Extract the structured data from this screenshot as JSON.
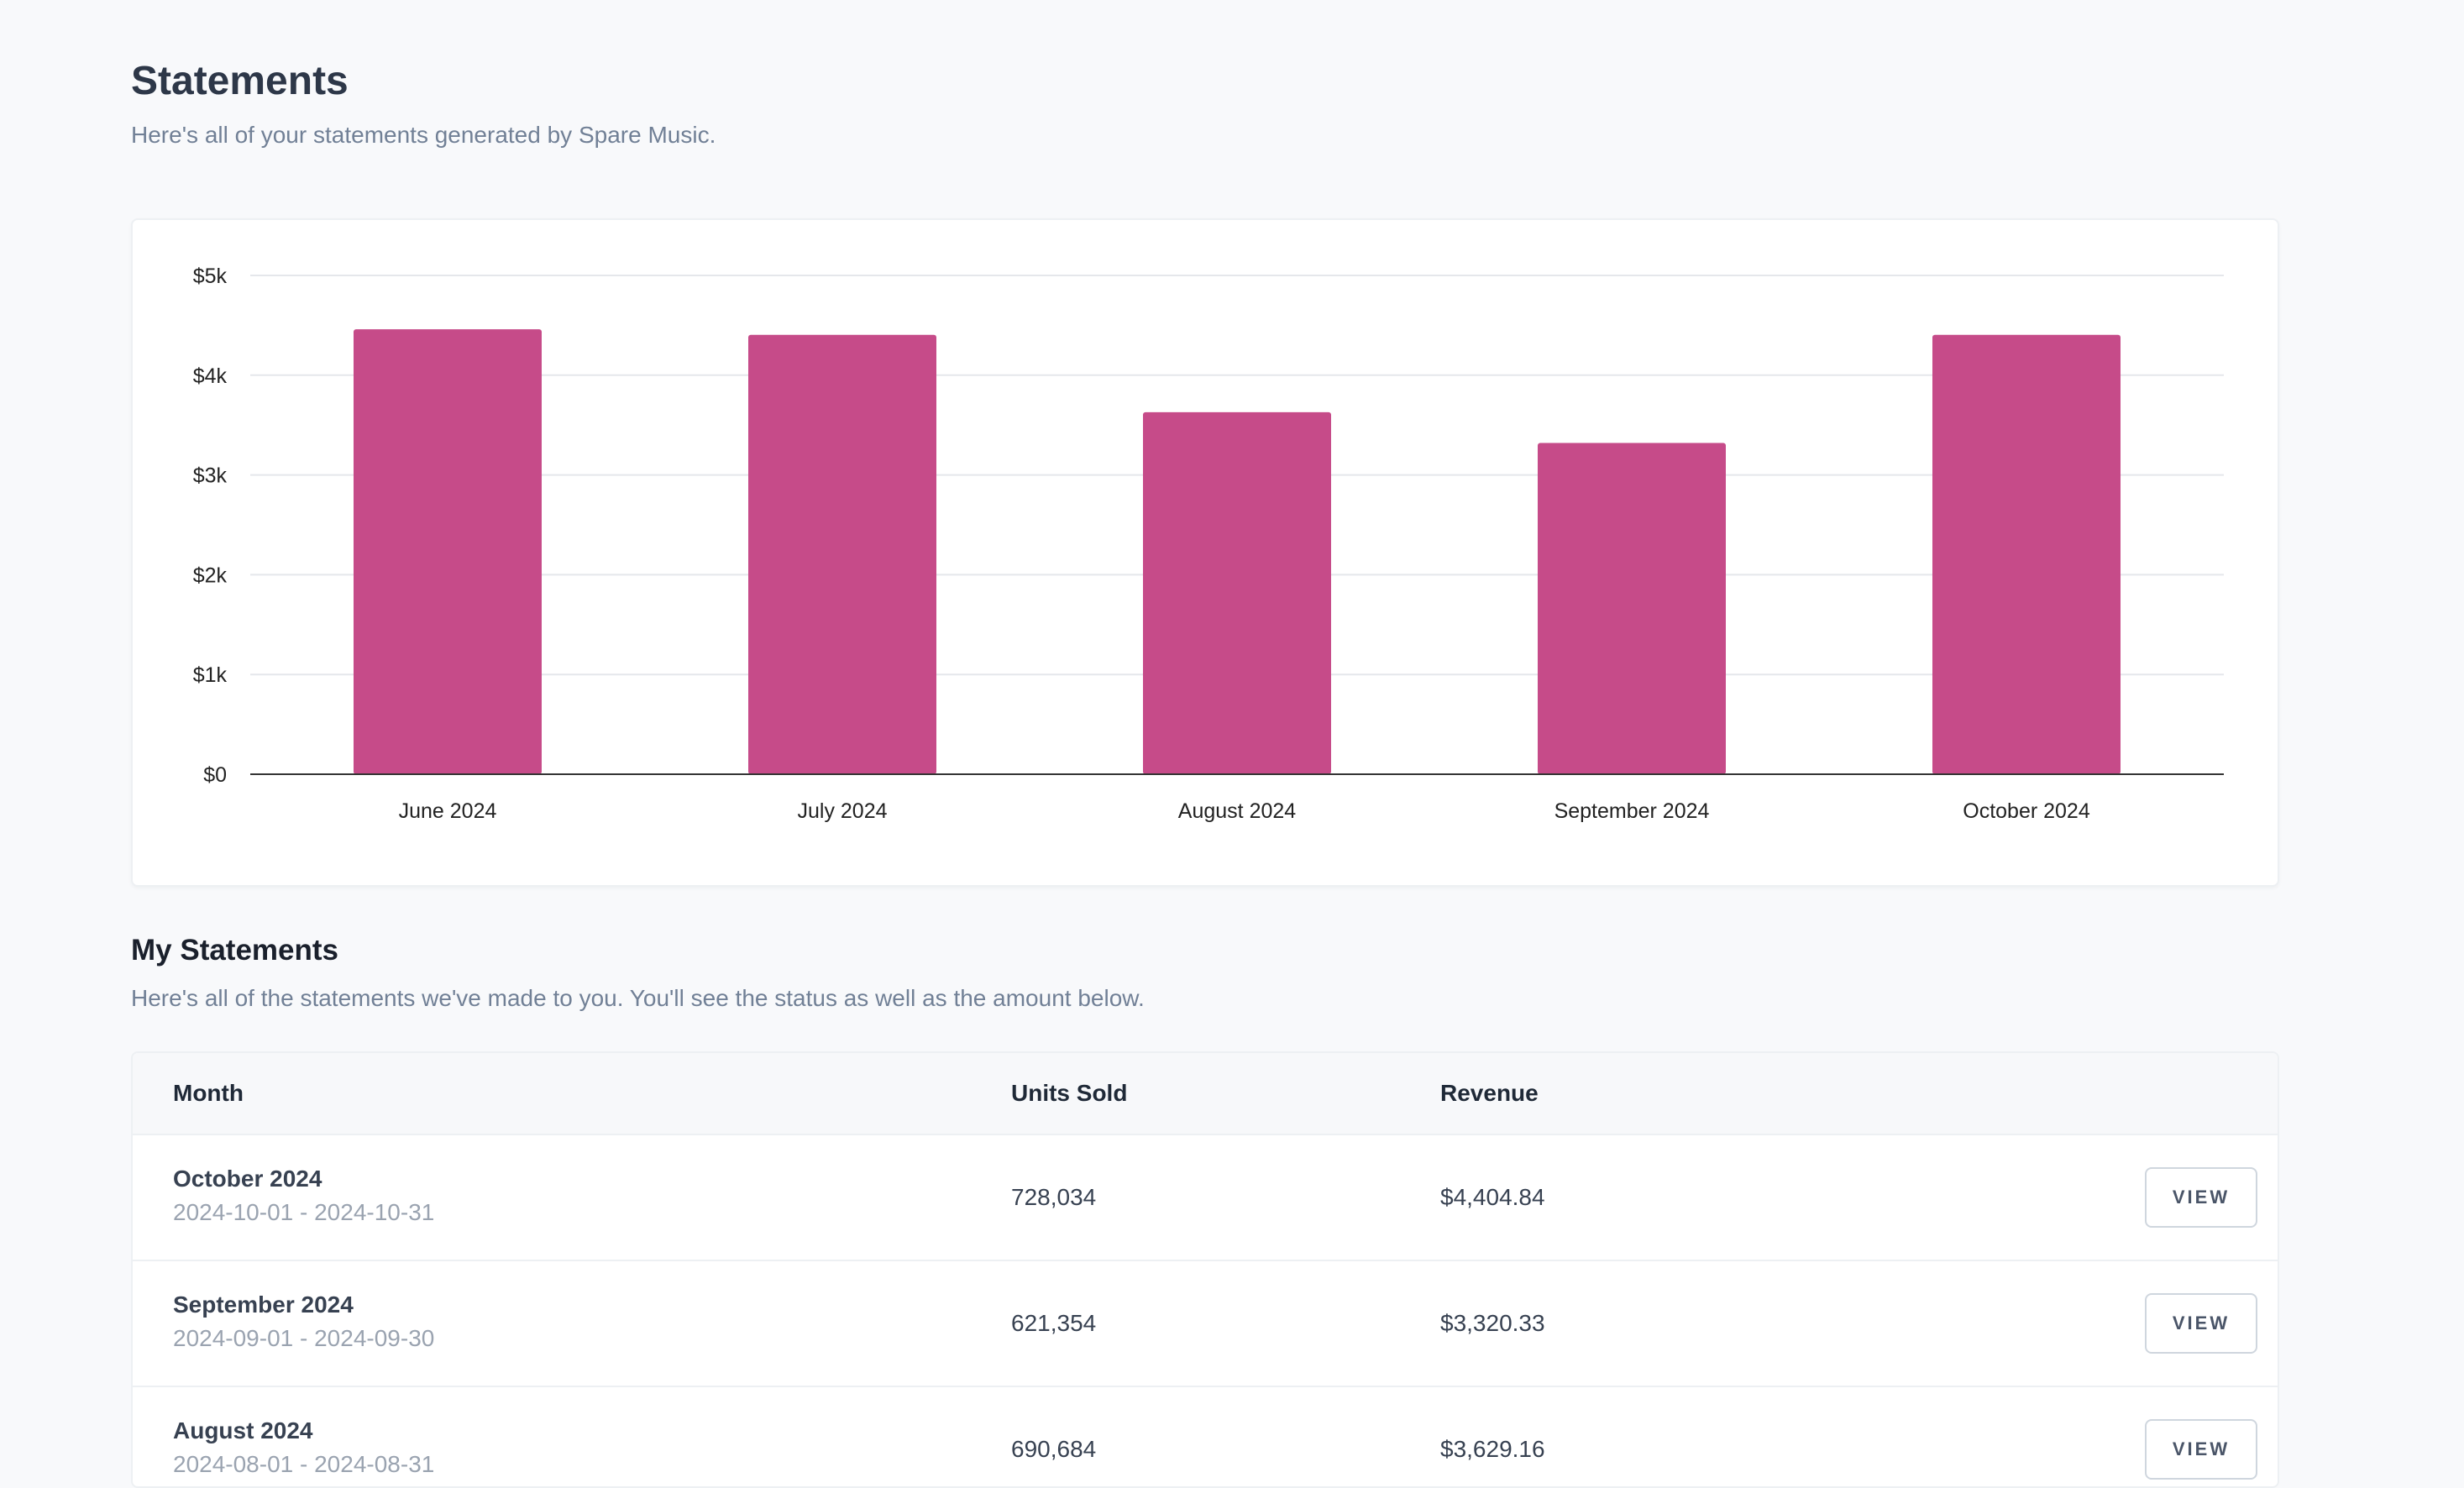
{
  "header": {
    "title": "Statements",
    "subtitle": "Here's all of your statements generated by Spare Music."
  },
  "colors": {
    "bar": "#c64b89",
    "grid": "#e5e7eb",
    "axis": "#333333",
    "background": "#f8f9fb"
  },
  "chart_data": {
    "type": "bar",
    "categories": [
      "June 2024",
      "July 2024",
      "August 2024",
      "September 2024",
      "October 2024"
    ],
    "values": [
      4460,
      4404.84,
      3629.16,
      3320.33,
      4404.84
    ],
    "y_ticks": [
      0,
      1000,
      2000,
      3000,
      4000,
      5000
    ],
    "y_tick_labels": [
      "$0",
      "$1k",
      "$2k",
      "$3k",
      "$4k",
      "$5k"
    ],
    "ylim": [
      0,
      5000
    ],
    "grid": true,
    "legend": false
  },
  "statements": {
    "title": "My Statements",
    "subtitle": "Here's all of the statements we've made to you. You'll see the status as well as the amount below.",
    "columns": {
      "month": "Month",
      "units": "Units Sold",
      "revenue": "Revenue"
    },
    "rows": [
      {
        "month": "October 2024",
        "range": "2024-10-01 - 2024-10-31",
        "units": "728,034",
        "revenue": "$4,404.84",
        "action": "VIEW"
      },
      {
        "month": "September 2024",
        "range": "2024-09-01 - 2024-09-30",
        "units": "621,354",
        "revenue": "$3,320.33",
        "action": "VIEW"
      },
      {
        "month": "August 2024",
        "range": "2024-08-01 - 2024-08-31",
        "units": "690,684",
        "revenue": "$3,629.16",
        "action": "VIEW"
      }
    ]
  }
}
